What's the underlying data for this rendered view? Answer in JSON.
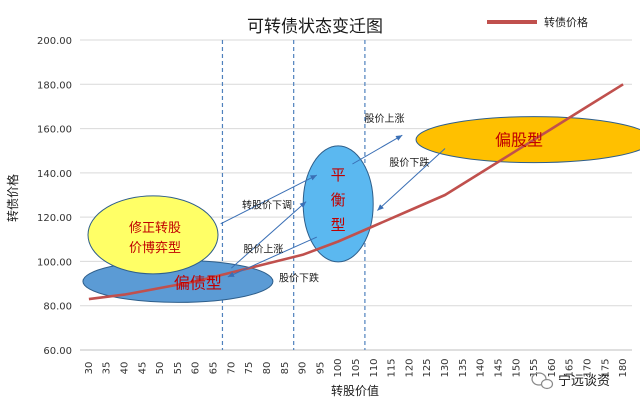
{
  "chart_data": {
    "type": "line",
    "title": "可转债状态变迁图",
    "xlabel": "转股价值",
    "ylabel": "转债价格",
    "legend_position": "top-right",
    "x": [
      30,
      35,
      40,
      45,
      50,
      55,
      60,
      65,
      70,
      75,
      80,
      85,
      90,
      95,
      100,
      105,
      110,
      115,
      120,
      125,
      130,
      135,
      140,
      145,
      150,
      155,
      160,
      165,
      170,
      175,
      180
    ],
    "xlim": [
      30,
      180
    ],
    "ylim": [
      60,
      200
    ],
    "yticks": [
      "60.00",
      "80.00",
      "100.00",
      "120.00",
      "140.00",
      "160.00",
      "180.00",
      "200.00"
    ],
    "grid": "horizontal",
    "series": [
      {
        "name": "转债价格",
        "color": "#c0504d",
        "points": [
          [
            30,
            83
          ],
          [
            40,
            85
          ],
          [
            50,
            88
          ],
          [
            60,
            91
          ],
          [
            70,
            95
          ],
          [
            80,
            99
          ],
          [
            90,
            103
          ],
          [
            100,
            109
          ],
          [
            110,
            116
          ],
          [
            120,
            123
          ],
          [
            130,
            130
          ],
          [
            140,
            140
          ],
          [
            150,
            150
          ],
          [
            160,
            160
          ],
          [
            170,
            170
          ],
          [
            180,
            180
          ]
        ]
      }
    ],
    "vlines": [
      70,
      90,
      110
    ],
    "regions": [
      {
        "label": "偏债型",
        "cx": 55,
        "cy": 91,
        "color": "#5b9bd5"
      },
      {
        "label": "修正转股价博弈型",
        "line1": "修正转股",
        "line2": "价博弈型",
        "cx": 48,
        "cy": 112,
        "color": "#ffff66"
      },
      {
        "label": "平衡型",
        "chars": [
          "平",
          "衡",
          "型"
        ],
        "cx": 100,
        "cy": 126,
        "color": "#5bb8f0"
      },
      {
        "label": "偏股型",
        "cx": 155,
        "cy": 155,
        "color": "#ffc000"
      }
    ],
    "annotations": [
      {
        "text": "转股价下调",
        "x": 80,
        "y": 124
      },
      {
        "text": "股价上涨",
        "x": 79,
        "y": 104
      },
      {
        "text": "股价下跌",
        "x": 89,
        "y": 91
      },
      {
        "text": "股价上涨",
        "x": 113,
        "y": 163
      },
      {
        "text": "股价下跌",
        "x": 120,
        "y": 143
      }
    ]
  },
  "watermark": "宁远谈资"
}
